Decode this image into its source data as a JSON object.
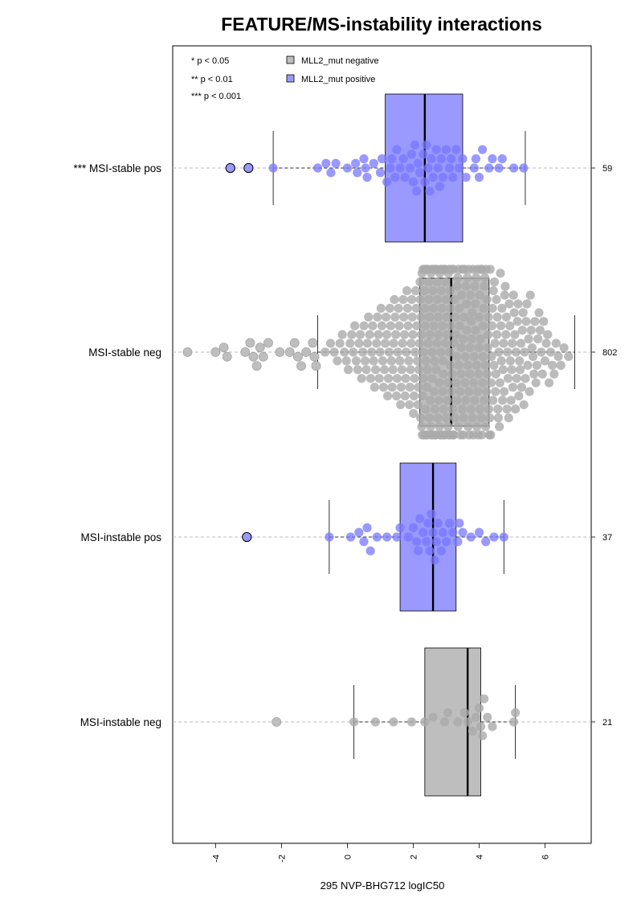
{
  "chart_data": {
    "type": "box+beeswarm",
    "orientation": "horizontal",
    "title": "FEATURE/MS-instability interactions",
    "xlabel": "295 NVP-BHG712 logIC50",
    "xlim": [
      -5.3,
      7.4
    ],
    "xticks": [
      -4,
      -2,
      0,
      2,
      4,
      6
    ],
    "xtick_labels": [
      "-4",
      "-2",
      "0",
      "2",
      "4",
      "6"
    ],
    "significance_legend": [
      "* p < 0.05",
      "** p < 0.01",
      "*** p < 0.001"
    ],
    "legend": [
      {
        "label": "MLL2_mut negative",
        "color": "#bebebe"
      },
      {
        "label": "MLL2_mut positive",
        "color": "#9999ff"
      }
    ],
    "point_colors": {
      "negative": "#aaaaaa",
      "positive": "#7777ff"
    },
    "groups": [
      {
        "label": "*** MSI-stable pos",
        "n": "59",
        "mutation": "positive",
        "box": {
          "q1": 1.15,
          "median": 2.35,
          "q3": 3.5,
          "whisker_low": -2.25,
          "whisker_high": 5.4
        },
        "outliers": [
          -3.55,
          -3.0
        ],
        "points": [
          -2.25,
          -0.9,
          -0.65,
          -0.35,
          0.0,
          0.3,
          0.55,
          0.8,
          1.05,
          1.3,
          1.5,
          1.7,
          1.9,
          2.05,
          2.2,
          2.3,
          2.4,
          2.5,
          2.6,
          2.7,
          2.85,
          3.0,
          3.2,
          3.4,
          3.6,
          3.85,
          4.1,
          4.4,
          4.7,
          5.05,
          5.35,
          -0.5,
          0.25,
          0.6,
          1.0,
          1.35,
          1.75,
          2.1,
          2.45,
          2.75,
          3.1,
          3.5,
          3.9,
          4.3,
          0.5,
          1.2,
          1.6,
          2.0,
          2.55,
          2.9,
          3.3,
          4.0,
          4.6,
          1.45,
          1.95,
          2.35,
          2.8,
          3.15,
          2.15
        ]
      },
      {
        "label": "MSI-stable neg",
        "n": "802",
        "mutation": "negative",
        "box": {
          "q1": 2.2,
          "median": 3.15,
          "q3": 4.3,
          "whisker_low": -0.9,
          "whisker_high": 6.9
        },
        "outliers": [
          -4.85,
          -4.0,
          -3.75,
          -3.65,
          -3.1,
          -2.95,
          -2.85,
          -2.75,
          -2.65,
          -2.55,
          -2.4,
          -2.05,
          -1.75,
          -1.6,
          -1.5,
          -1.4,
          -1.25,
          -1.05,
          -1.0,
          -0.95
        ]
      },
      {
        "label": "MSI-instable pos",
        "n": "37",
        "mutation": "positive",
        "box": {
          "q1": 1.6,
          "median": 2.6,
          "q3": 3.3,
          "whisker_low": -0.55,
          "whisker_high": 4.75
        },
        "outliers": [
          -3.05
        ],
        "points": [
          -0.55,
          0.1,
          0.35,
          0.5,
          0.7,
          0.9,
          1.2,
          1.6,
          1.85,
          2.0,
          2.1,
          2.2,
          2.3,
          2.4,
          2.5,
          2.6,
          2.65,
          2.75,
          2.85,
          3.0,
          3.1,
          3.2,
          3.35,
          3.5,
          3.75,
          4.0,
          4.2,
          4.45,
          4.75,
          2.55,
          2.45,
          2.9,
          0.6,
          1.5,
          2.15,
          2.7,
          3.4
        ]
      },
      {
        "label": "MSI-instable neg",
        "n": "21",
        "mutation": "negative",
        "box": {
          "q1": 2.35,
          "median": 3.65,
          "q3": 4.05,
          "whisker_low": 0.2,
          "whisker_high": 5.1
        },
        "outliers": [
          -2.15
        ],
        "points": [
          0.2,
          0.85,
          1.4,
          1.95,
          2.35,
          2.6,
          2.95,
          3.05,
          3.35,
          3.55,
          3.65,
          3.8,
          3.9,
          4.0,
          4.05,
          4.1,
          4.15,
          4.25,
          4.4,
          5.1,
          5.05
        ]
      }
    ]
  }
}
